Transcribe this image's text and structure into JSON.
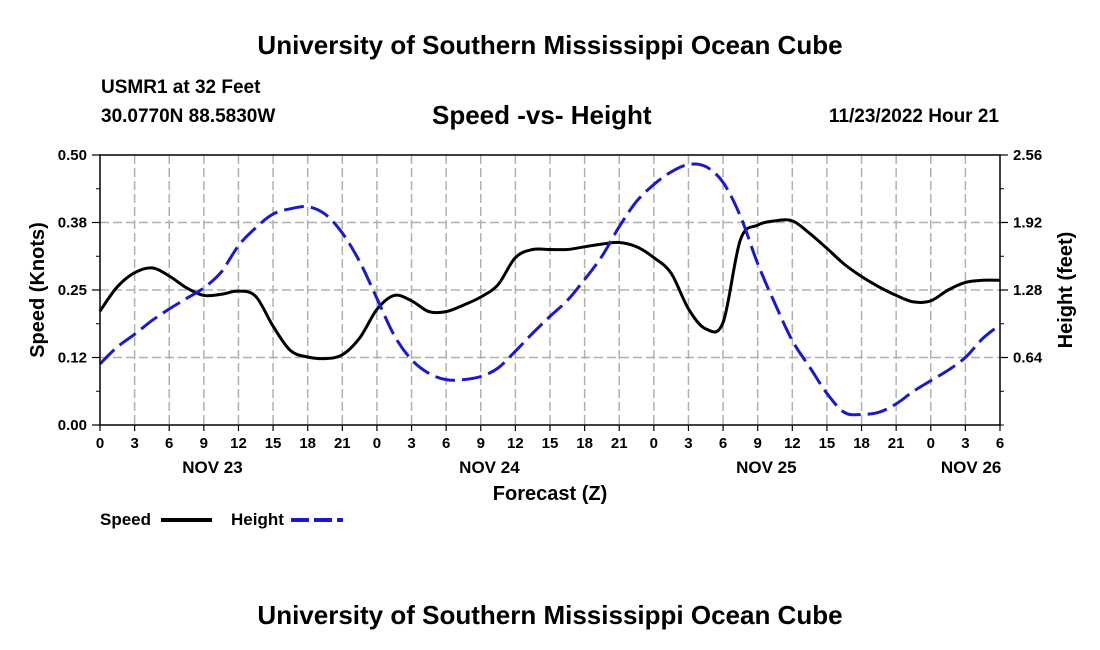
{
  "header": {
    "title": "University of Southern Mississippi Ocean Cube",
    "station": "USMR1 at 32 Feet",
    "location": "30.0770N  88.5830W",
    "datetime": "11/23/2022 Hour 21"
  },
  "footer": {
    "title": "University of Southern Mississippi Ocean Cube"
  },
  "colors": {
    "speed": "#000000",
    "height": "#1a1acc",
    "grid": "#b0b0b0"
  },
  "chart_data": {
    "type": "line",
    "title": "Speed -vs- Height",
    "xlabel": "Forecast (Z)",
    "ylabel": "Speed (Knots)",
    "y2label": "Height (feet)",
    "x_unit": "hours from 00Z Nov 23",
    "xlim": [
      0,
      78
    ],
    "ylim": [
      0,
      0.5
    ],
    "y2lim": [
      0,
      2.56
    ],
    "yticks": [
      "0.00",
      "0.12",
      "0.25",
      "0.38",
      "0.50"
    ],
    "y2ticks": [
      "0.64",
      "1.28",
      "1.92",
      "2.56"
    ],
    "xtick_labels": [
      "0",
      "3",
      "6",
      "9",
      "12",
      "15",
      "18",
      "21",
      "0",
      "3",
      "6",
      "9",
      "12",
      "15",
      "18",
      "21",
      "0",
      "3",
      "6",
      "9",
      "12",
      "15",
      "18",
      "21",
      "0",
      "3",
      "6"
    ],
    "date_labels": [
      {
        "label": "NOV 23",
        "hour": 9.75
      },
      {
        "label": "NOV 24",
        "hour": 33.75
      },
      {
        "label": "NOV 25",
        "hour": 57.75
      },
      {
        "label": "NOV 26",
        "hour": 75.5
      }
    ],
    "legend": [
      {
        "name": "Speed",
        "style": "solid"
      },
      {
        "name": "Height",
        "style": "dashed"
      }
    ],
    "series": [
      {
        "name": "Speed",
        "axis": "left",
        "style": "solid",
        "x": [
          0,
          1.5,
          3,
          4.5,
          6,
          7.5,
          9,
          10.5,
          12,
          13.5,
          15,
          16.5,
          18,
          19.5,
          21,
          22.5,
          24,
          25.5,
          27,
          28.5,
          30,
          31.5,
          33,
          34.5,
          36,
          37.5,
          39,
          40.5,
          42,
          43.5,
          45,
          46.5,
          48,
          49.5,
          51,
          52.5,
          54,
          55.5,
          57,
          58.5,
          60,
          61.5,
          63,
          64.5,
          66,
          67.5,
          69,
          70.5,
          72,
          73.5,
          75,
          76.5,
          78
        ],
        "values": [
          0.211,
          0.256,
          0.282,
          0.291,
          0.276,
          0.254,
          0.24,
          0.242,
          0.248,
          0.238,
          0.183,
          0.138,
          0.126,
          0.123,
          0.13,
          0.161,
          0.214,
          0.24,
          0.23,
          0.21,
          0.21,
          0.222,
          0.237,
          0.26,
          0.31,
          0.325,
          0.325,
          0.325,
          0.33,
          0.335,
          0.338,
          0.33,
          0.31,
          0.281,
          0.215,
          0.178,
          0.19,
          0.343,
          0.37,
          0.378,
          0.378,
          0.355,
          0.327,
          0.298,
          0.275,
          0.256,
          0.24,
          0.228,
          0.23,
          0.25,
          0.264,
          0.268,
          0.268
        ]
      },
      {
        "name": "Height",
        "axis": "right",
        "style": "dashed",
        "x": [
          0,
          1.5,
          3,
          4.5,
          6,
          7.5,
          9,
          10.5,
          12,
          13.5,
          15,
          16.5,
          18,
          19.5,
          21,
          22.5,
          24,
          25.5,
          27,
          28.5,
          30,
          31.5,
          33,
          34.5,
          36,
          37.5,
          39,
          40.5,
          42,
          43.5,
          45,
          46.5,
          48,
          49.5,
          51,
          52.5,
          54,
          55.5,
          57,
          58.5,
          60,
          61.5,
          63,
          64.5,
          66,
          67.5,
          69,
          70.5,
          72,
          73.5,
          75,
          76.5,
          78
        ],
        "values": [
          0.58,
          0.74,
          0.86,
          0.99,
          1.1,
          1.2,
          1.3,
          1.45,
          1.7,
          1.87,
          2.0,
          2.05,
          2.07,
          2.0,
          1.82,
          1.55,
          1.2,
          0.85,
          0.62,
          0.49,
          0.43,
          0.43,
          0.46,
          0.54,
          0.7,
          0.87,
          1.03,
          1.18,
          1.38,
          1.6,
          1.88,
          2.12,
          2.28,
          2.4,
          2.47,
          2.45,
          2.3,
          1.98,
          1.53,
          1.15,
          0.8,
          0.55,
          0.3,
          0.12,
          0.1,
          0.12,
          0.2,
          0.32,
          0.42,
          0.52,
          0.64,
          0.82,
          0.95
        ]
      }
    ]
  }
}
